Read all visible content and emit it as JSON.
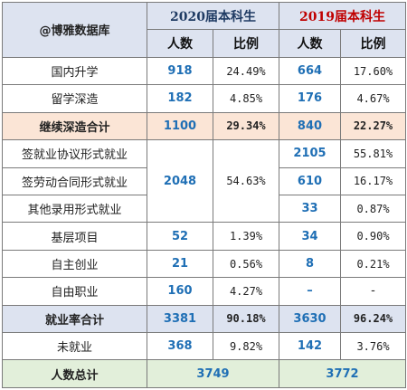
{
  "header": {
    "brand": "@博雅数据库",
    "year2020": "2020届本科生",
    "year2019": "2019届本科生",
    "count_label": "人数",
    "ratio_label": "比例"
  },
  "rows": {
    "domestic": {
      "label": "国内升学",
      "n2020": "918",
      "p2020": "24.49%",
      "n2019": "664",
      "p2019": "17.60%"
    },
    "abroad": {
      "label": "留学深造",
      "n2020": "182",
      "p2020": "4.85%",
      "n2019": "176",
      "p2019": "4.67%"
    },
    "further_total": {
      "label": "继续深造合计",
      "n2020": "1100",
      "p2020": "29.34%",
      "n2019": "840",
      "p2019": "22.27%"
    },
    "agreement": {
      "label": "签就业协议形式就业",
      "n2019": "2105",
      "p2019": "55.81%"
    },
    "contract": {
      "label": "签劳动合同形式就业",
      "n2019": "610",
      "p2019": "16.17%"
    },
    "other": {
      "label": "其他录用形式就业",
      "n2019": "33",
      "p2019": "0.87%"
    },
    "employed_merged_2020": {
      "n2020": "2048",
      "p2020": "54.63%"
    },
    "grassroots": {
      "label": "基层项目",
      "n2020": "52",
      "p2020": "1.39%",
      "n2019": "34",
      "p2019": "0.90%"
    },
    "startup": {
      "label": "自主创业",
      "n2020": "21",
      "p2020": "0.56%",
      "n2019": "8",
      "p2019": "0.21%"
    },
    "freelance": {
      "label": "自由职业",
      "n2020": "160",
      "p2020": "4.27%",
      "n2019": "–",
      "p2019": "-"
    },
    "employment_total": {
      "label": "就业率合计",
      "n2020": "3381",
      "p2020": "90.18%",
      "n2019": "3630",
      "p2019": "96.24%"
    },
    "unemployed": {
      "label": "未就业",
      "n2020": "368",
      "p2020": "9.82%",
      "n2019": "142",
      "p2019": "3.76%"
    },
    "grand_total": {
      "label": "人数总计",
      "n2020": "3749",
      "n2019": "3772"
    }
  }
}
